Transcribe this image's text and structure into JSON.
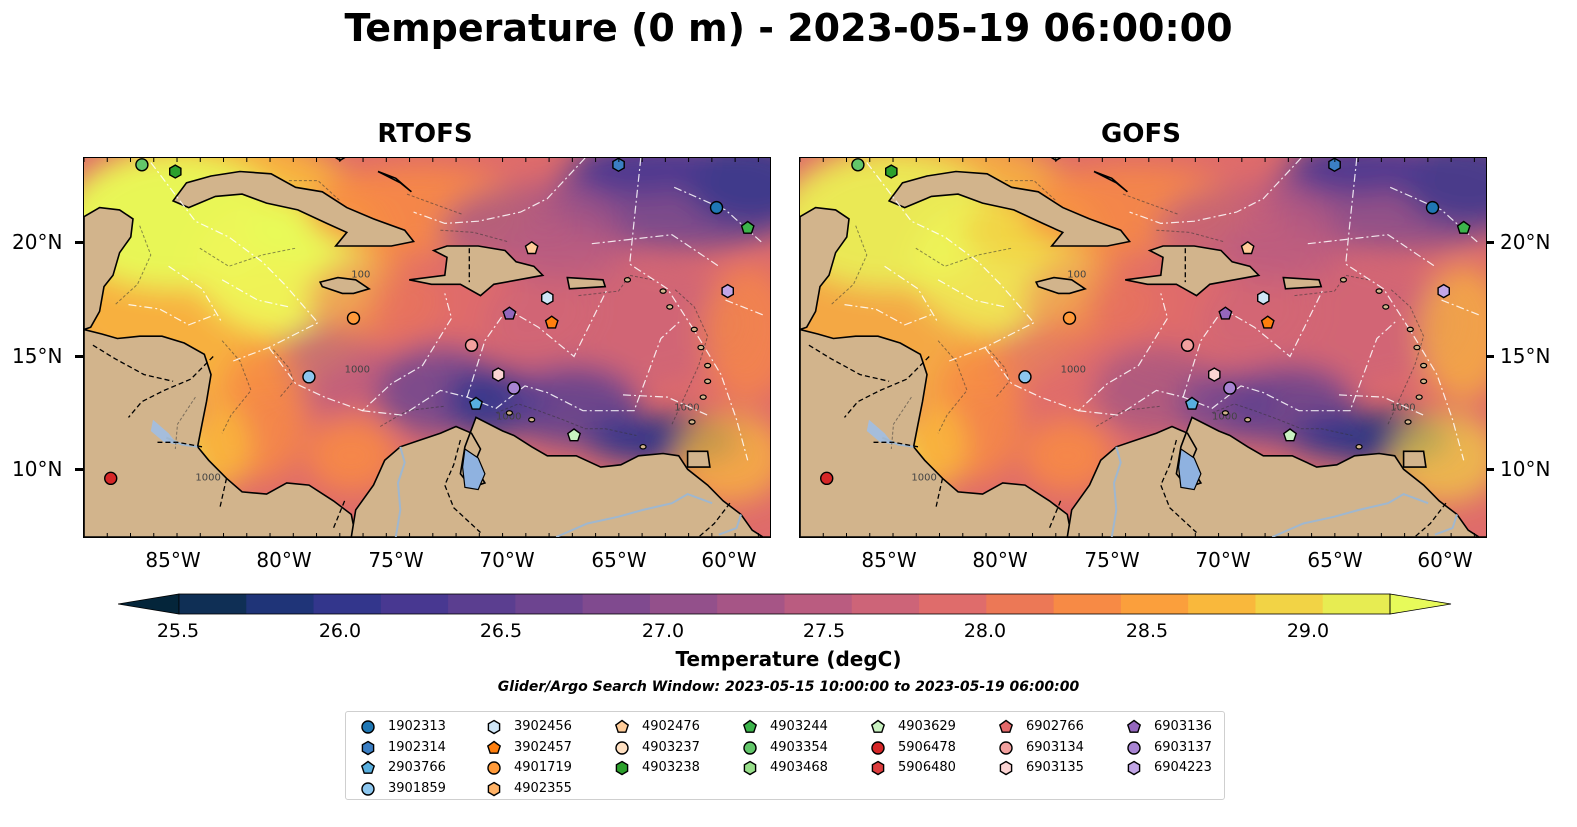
{
  "title": "Temperature (0 m) - 2023-05-19 06:00:00",
  "panels": [
    {
      "id": "rtofs",
      "title": "RTOFS"
    },
    {
      "id": "gofs",
      "title": "GOFS"
    }
  ],
  "axes": {
    "lat_ticks": [
      "20°N",
      "15°N",
      "10°N"
    ],
    "lon_ticks": [
      "85°W",
      "80°W",
      "75°W",
      "70°W",
      "65°W",
      "60°W"
    ]
  },
  "contour_labels": [
    "100",
    "1000"
  ],
  "colorbar": {
    "label": "Temperature (degC)",
    "min": 25.25,
    "max": 29.25,
    "step": 0.25,
    "ticks": [
      "25.5",
      "26.0",
      "26.5",
      "27.0",
      "27.5",
      "28.0",
      "28.5",
      "29.0"
    ],
    "colors": [
      "#04253a",
      "#0f2f55",
      "#1f3478",
      "#33368c",
      "#483891",
      "#5b3e90",
      "#6d4490",
      "#804a8f",
      "#93508b",
      "#a65586",
      "#ba5c80",
      "#cd6478",
      "#df6c6b",
      "#ec7856",
      "#f78a45",
      "#fb9f3c",
      "#f9b83c",
      "#f2d345",
      "#e7ec52",
      "#e7fa5a"
    ],
    "extend": "both"
  },
  "search_window": "Glider/Argo Search Window: 2023-05-15 10:00:00 to 2023-05-19 06:00:00",
  "legend": [
    {
      "id": "1902313",
      "marker": "circle",
      "color": "#1f77b4"
    },
    {
      "id": "1902314",
      "marker": "hexagon",
      "color": "#3b7fc4"
    },
    {
      "id": "2903766",
      "marker": "pentagon",
      "color": "#58aede"
    },
    {
      "id": "3901859",
      "marker": "circle",
      "color": "#8cc6ee"
    },
    {
      "id": "3902456",
      "marker": "hexagon",
      "color": "#cfe6f7"
    },
    {
      "id": "3902457",
      "marker": "pentagon",
      "color": "#ff7f0e"
    },
    {
      "id": "4901719",
      "marker": "circle",
      "color": "#ff9a3a"
    },
    {
      "id": "4902355",
      "marker": "hexagon",
      "color": "#ffb266"
    },
    {
      "id": "4902476",
      "marker": "pentagon",
      "color": "#ffcc99"
    },
    {
      "id": "4903237",
      "marker": "circle",
      "color": "#ffe0c2"
    },
    {
      "id": "4903238",
      "marker": "hexagon",
      "color": "#2ca02c"
    },
    {
      "id": "4903244",
      "marker": "pentagon",
      "color": "#3cb44b"
    },
    {
      "id": "4903354",
      "marker": "circle",
      "color": "#63c66a"
    },
    {
      "id": "4903468",
      "marker": "hexagon",
      "color": "#98df8a"
    },
    {
      "id": "4903629",
      "marker": "pentagon",
      "color": "#c9f2c1"
    },
    {
      "id": "5906478",
      "marker": "circle",
      "color": "#d62728"
    },
    {
      "id": "5906480",
      "marker": "hexagon",
      "color": "#dd3d3e"
    },
    {
      "id": "6902766",
      "marker": "pentagon",
      "color": "#e3696a"
    },
    {
      "id": "6903134",
      "marker": "circle",
      "color": "#f2a09e"
    },
    {
      "id": "6903135",
      "marker": "hexagon",
      "color": "#fbd4d3"
    },
    {
      "id": "6903136",
      "marker": "pentagon",
      "color": "#9467bd"
    },
    {
      "id": "6903137",
      "marker": "circle",
      "color": "#a884d2"
    },
    {
      "id": "6904223",
      "marker": "hexagon",
      "color": "#c2a6e6"
    }
  ],
  "observations": [
    {
      "id": "4903354",
      "lon": -86.4,
      "lat": 23.5
    },
    {
      "id": "4903238",
      "lon": -84.9,
      "lat": 23.2
    },
    {
      "id": "1902314",
      "lon": -65.0,
      "lat": 23.5
    },
    {
      "id": "1902313",
      "lon": -60.6,
      "lat": 21.6
    },
    {
      "id": "4903244",
      "lon": -59.2,
      "lat": 20.7
    },
    {
      "id": "4902476",
      "lon": -68.9,
      "lat": 19.8
    },
    {
      "id": "6904223",
      "lon": -60.1,
      "lat": 17.9
    },
    {
      "id": "3902456",
      "lon": -68.2,
      "lat": 17.6
    },
    {
      "id": "6903136",
      "lon": -69.9,
      "lat": 16.9
    },
    {
      "id": "3902457",
      "lon": -68.0,
      "lat": 16.5
    },
    {
      "id": "4901719",
      "lon": -76.9,
      "lat": 16.7
    },
    {
      "id": "6903134",
      "lon": -71.6,
      "lat": 15.5
    },
    {
      "id": "3901859",
      "lon": -78.9,
      "lat": 14.1
    },
    {
      "id": "6903135",
      "lon": -70.4,
      "lat": 14.2
    },
    {
      "id": "6903137",
      "lon": -69.7,
      "lat": 13.6
    },
    {
      "id": "2903766",
      "lon": -71.4,
      "lat": 12.9
    },
    {
      "id": "4903629",
      "lon": -67.0,
      "lat": 11.5
    },
    {
      "id": "5906478",
      "lon": -87.8,
      "lat": 9.6
    }
  ]
}
